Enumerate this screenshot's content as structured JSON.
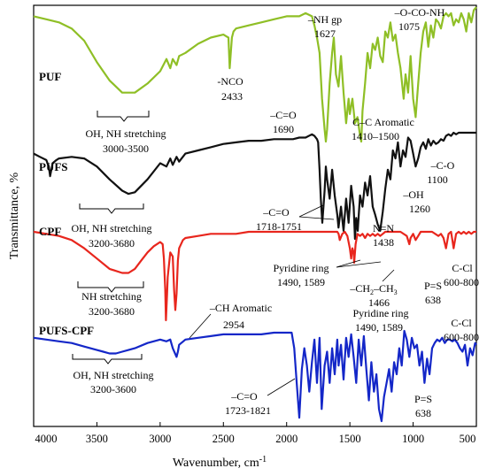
{
  "chart_data": {
    "type": "line",
    "title": "",
    "xlabel": "Wavenumber, cm",
    "xlabel_sup": "-1",
    "ylabel": "Transmittance, %",
    "xlim": [
      4000,
      500
    ],
    "x_reversed": true,
    "x_ticks": [
      "4000",
      "3500",
      "3000",
      "2500",
      "2000",
      "1500",
      "1000",
      "500"
    ],
    "y_ticks": [],
    "grid": false,
    "series": [
      {
        "name": "PUF",
        "color": "#8fbf26",
        "x": [
          4000,
          3900,
          3800,
          3700,
          3600,
          3500,
          3400,
          3300,
          3200,
          3100,
          3000,
          2950,
          2920,
          2900,
          2870,
          2850,
          2800,
          2700,
          2600,
          2500,
          2460,
          2450,
          2433,
          2420,
          2400,
          2300,
          2200,
          2100,
          2000,
          1950,
          1900,
          1850,
          1800,
          1780,
          1760,
          1740,
          1720,
          1700,
          1690,
          1680,
          1660,
          1640,
          1627,
          1610,
          1590,
          1570,
          1550,
          1530,
          1510,
          1500,
          1480,
          1460,
          1440,
          1420,
          1410,
          1400,
          1380,
          1360,
          1340,
          1320,
          1300,
          1280,
          1260,
          1240,
          1220,
          1200,
          1180,
          1160,
          1140,
          1120,
          1100,
          1075,
          1060,
          1040,
          1020,
          1000,
          980,
          960,
          940,
          920,
          900,
          880,
          860,
          840,
          820,
          800,
          780,
          760,
          740,
          720,
          700,
          680,
          660,
          640,
          620,
          600,
          580,
          560,
          540,
          520,
          500
        ],
        "y": [
          97,
          96,
          95,
          93,
          89,
          82,
          76,
          72,
          72,
          75,
          79,
          83,
          80,
          83,
          81,
          84,
          85,
          88,
          90,
          91,
          90,
          80,
          90,
          92,
          93,
          94,
          95,
          96,
          97,
          97,
          97,
          98,
          97,
          94,
          90,
          85,
          70,
          60,
          56,
          60,
          75,
          85,
          90,
          78,
          74,
          84,
          72,
          62,
          70,
          65,
          70,
          62,
          64,
          58,
          56,
          66,
          75,
          85,
          80,
          88,
          86,
          90,
          84,
          82,
          92,
          90,
          95,
          89,
          91,
          85,
          80,
          70,
          78,
          72,
          84,
          70,
          64,
          75,
          85,
          92,
          95,
          87,
          94,
          90,
          96,
          95,
          93,
          97,
          98,
          97,
          98,
          94,
          96,
          95,
          98,
          96,
          92,
          98,
          95,
          99,
          100
        ]
      },
      {
        "name": "PUFS",
        "color": "#111111",
        "x": [
          4000,
          3950,
          3900,
          3880,
          3870,
          3860,
          3850,
          3820,
          3800,
          3700,
          3600,
          3500,
          3400,
          3300,
          3250,
          3200,
          3100,
          3000,
          2950,
          2920,
          2900,
          2870,
          2850,
          2800,
          2700,
          2600,
          2500,
          2400,
          2300,
          2200,
          2100,
          2000,
          1950,
          1900,
          1850,
          1800,
          1780,
          1760,
          1751,
          1740,
          1730,
          1718,
          1700,
          1690,
          1680,
          1660,
          1640,
          1620,
          1600,
          1590,
          1570,
          1550,
          1530,
          1510,
          1490,
          1470,
          1460,
          1450,
          1438,
          1420,
          1400,
          1380,
          1360,
          1340,
          1320,
          1300,
          1280,
          1260,
          1240,
          1220,
          1200,
          1180,
          1160,
          1140,
          1120,
          1100,
          1080,
          1060,
          1040,
          1020,
          1000,
          980,
          960,
          940,
          920,
          900,
          880,
          860,
          840,
          820,
          800,
          780,
          760,
          740,
          720,
          700,
          680,
          660,
          640,
          620,
          600,
          580,
          560,
          540,
          520,
          500
        ],
        "y": [
          88,
          86,
          84,
          80,
          74,
          78,
          82,
          84,
          85,
          86,
          85,
          80,
          72,
          65,
          63,
          64,
          72,
          82,
          80,
          85,
          81,
          86,
          83,
          88,
          90,
          92,
          94,
          95,
          96,
          96,
          97,
          97,
          97,
          98,
          98,
          100,
          99,
          97,
          95,
          78,
          60,
          45,
          65,
          80,
          72,
          60,
          78,
          62,
          50,
          42,
          55,
          40,
          60,
          45,
          68,
          55,
          35,
          48,
          40,
          62,
          55,
          70,
          62,
          74,
          55,
          50,
          44,
          40,
          52,
          66,
          78,
          72,
          90,
          85,
          95,
          80,
          90,
          86,
          98,
          96,
          88,
          80,
          85,
          92,
          95,
          91,
          97,
          93,
          96,
          94,
          95,
          97,
          96,
          99,
          100,
          99,
          101,
          100,
          101,
          101,
          101,
          101,
          101,
          101,
          101,
          101
        ]
      },
      {
        "name": "CPF",
        "color": "#e8261d",
        "x": [
          4000,
          3900,
          3800,
          3700,
          3600,
          3500,
          3400,
          3300,
          3250,
          3200,
          3150,
          3100,
          3050,
          3000,
          2980,
          2970,
          2960,
          2954,
          2945,
          2940,
          2920,
          2900,
          2890,
          2880,
          2870,
          2860,
          2850,
          2820,
          2800,
          2700,
          2600,
          2500,
          2400,
          2300,
          2200,
          2100,
          2000,
          1900,
          1800,
          1700,
          1650,
          1600,
          1589,
          1580,
          1560,
          1540,
          1520,
          1500,
          1490,
          1480,
          1470,
          1466,
          1455,
          1440,
          1420,
          1400,
          1380,
          1360,
          1340,
          1320,
          1300,
          1280,
          1260,
          1240,
          1220,
          1200,
          1150,
          1100,
          1050,
          1030,
          1020,
          1000,
          980,
          960,
          940,
          900,
          850,
          800,
          780,
          760,
          740,
          720,
          700,
          690,
          680,
          660,
          640,
          620,
          600,
          580,
          560,
          540,
          520,
          500
        ],
        "y": [
          98,
          97,
          96,
          94,
          90,
          85,
          80,
          78,
          78,
          80,
          84,
          88,
          91,
          93,
          92,
          85,
          70,
          55,
          68,
          76,
          88,
          86,
          70,
          60,
          68,
          84,
          90,
          94,
          95,
          96,
          97,
          97,
          97,
          98,
          98,
          98,
          98,
          98,
          98,
          98,
          98,
          98,
          97,
          94,
          97,
          98,
          96,
          90,
          85,
          90,
          88,
          83,
          92,
          97,
          96,
          97,
          95,
          97,
          96,
          97,
          96,
          97,
          96,
          97,
          98,
          98,
          98,
          98,
          96,
          92,
          95,
          97,
          94,
          96,
          98,
          98,
          98,
          96,
          97,
          95,
          90,
          97,
          98,
          94,
          90,
          97,
          98,
          97,
          98,
          97,
          98,
          97,
          98,
          98
        ]
      },
      {
        "name": "PUFS-CPF",
        "color": "#1427c8",
        "x": [
          4000,
          3900,
          3800,
          3700,
          3600,
          3500,
          3450,
          3400,
          3350,
          3300,
          3250,
          3200,
          3100,
          3000,
          2950,
          2920,
          2900,
          2870,
          2860,
          2850,
          2800,
          2700,
          2600,
          2500,
          2400,
          2300,
          2200,
          2100,
          2000,
          1960,
          1940,
          1920,
          1900,
          1880,
          1860,
          1840,
          1821,
          1800,
          1780,
          1760,
          1740,
          1723,
          1700,
          1680,
          1660,
          1640,
          1620,
          1600,
          1589,
          1570,
          1550,
          1530,
          1510,
          1490,
          1470,
          1450,
          1430,
          1410,
          1390,
          1370,
          1350,
          1330,
          1310,
          1290,
          1270,
          1250,
          1230,
          1210,
          1190,
          1170,
          1150,
          1130,
          1110,
          1090,
          1070,
          1050,
          1030,
          1010,
          990,
          970,
          950,
          930,
          910,
          890,
          870,
          850,
          830,
          810,
          790,
          770,
          750,
          730,
          710,
          690,
          670,
          650,
          630,
          610,
          590,
          570,
          550,
          530,
          510,
          500
        ],
        "y": [
          96,
          95,
          94,
          93,
          91,
          89,
          88,
          87,
          87,
          88,
          89,
          90,
          93,
          95,
          94,
          95,
          90,
          85,
          88,
          92,
          95,
          96,
          97,
          98,
          98,
          98,
          98,
          99,
          99,
          99,
          90,
          70,
          50,
          78,
          90,
          80,
          65,
          82,
          95,
          70,
          96,
          55,
          80,
          88,
          70,
          90,
          75,
          95,
          80,
          92,
          72,
          96,
          85,
          98,
          85,
          70,
          95,
          80,
          97,
          78,
          60,
          82,
          65,
          75,
          55,
          48,
          62,
          70,
          78,
          65,
          82,
          75,
          90,
          80,
          100,
          95,
          85,
          96,
          90,
          92,
          80,
          88,
          70,
          84,
          75,
          90,
          93,
          95,
          94,
          96,
          93,
          95,
          95,
          94,
          95,
          93,
          90,
          88,
          92,
          80,
          90,
          86,
          93,
          92
        ]
      }
    ]
  },
  "annotations": {
    "puf_nh_gp": "–NH gp",
    "puf_nh_gp_val": "1627",
    "puf_ococ": "–O-CO-NH",
    "puf_ococ_val": "1075",
    "puf_nco": "-NCO",
    "puf_nco_val": "2433",
    "puf_cc": "C–C Aromatic",
    "puf_cc_val": "1410–1500",
    "puf_co": "–C=O",
    "puf_co_val": "1690",
    "puf_ohnh": "OH, NH stretching",
    "puf_ohnh_val": "3000-3500",
    "pufs_ohnh": "OH, NH stretching",
    "pufs_ohnh_val": "3200-3680",
    "pufs_co2": "–C-O",
    "pufs_co2_val": "1100",
    "pufs_oh": "–OH",
    "pufs_oh_val": "1260",
    "pufs_co": "–C=O",
    "pufs_co_val": "1718-1751",
    "pufs_nn": "N=N",
    "pufs_nn_val": "1438",
    "cpf_nh": "NH stretching",
    "cpf_nh_val": "3200-3680",
    "cpf_pyr": "Pyridine ring",
    "cpf_pyr_val": "1490, 1589",
    "cpf_ch2_a": "–CH",
    "cpf_ch2_b": "2",
    "cpf_ch2_c": "–CH",
    "cpf_ch2_d": "3",
    "cpf_ch2_val": "1466",
    "cpf_ps": "P=S",
    "cpf_ps_val": "638",
    "cpf_ccl": "C-Cl",
    "cpf_ccl_val": "600-800",
    "cpf_ch_arom": "–CH Aromatic",
    "cpf_ch_arom_val": "2954",
    "pc_ohnh": "OH, NH stretching",
    "pc_ohnh_val": "3200-3600",
    "pc_pyr": "Pyridine ring",
    "pc_pyr_val": "1490, 1589",
    "pc_ccl": "C-Cl",
    "pc_ccl_val": "600-800",
    "pc_co": "–C=O",
    "pc_co_val": "1723-1821",
    "pc_ps": "P=S",
    "pc_ps_val": "638"
  }
}
